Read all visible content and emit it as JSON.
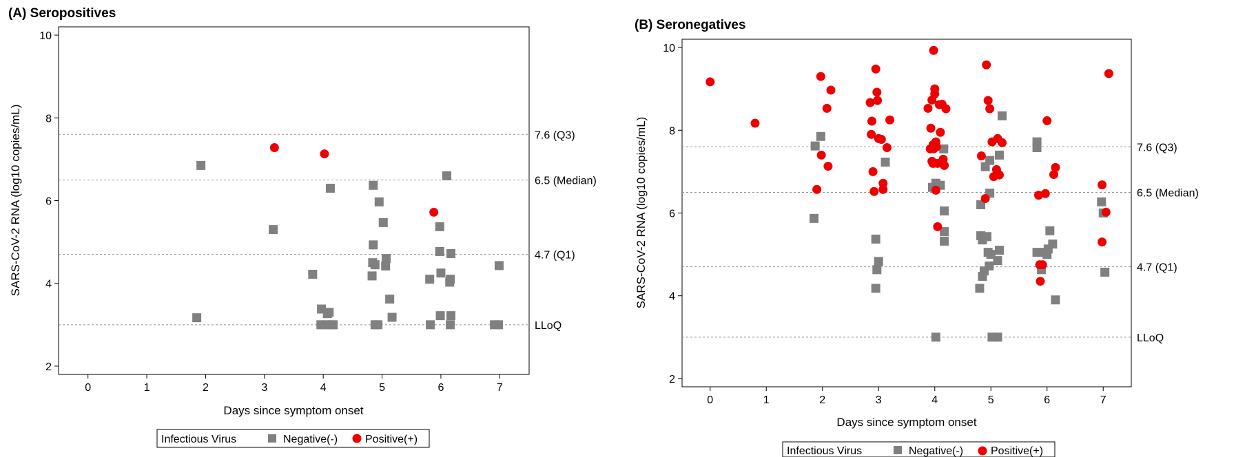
{
  "colors": {
    "negative": "#808080",
    "positive": "#ee0000",
    "axis": "#000000",
    "reference": "#909090"
  },
  "icons": {
    "negative": "square-marker-icon",
    "positive": "circle-marker-icon"
  },
  "legend": {
    "title": "Infectious Virus",
    "negative": "Negative(-)",
    "positive": "Positive(+)",
    "placement": "bottom-center"
  },
  "chart_data": [
    {
      "type": "scatter",
      "title": "(A) Seropositives",
      "xlabel": "Days since symptom onset",
      "ylabel": "SARS-CoV-2 RNA (log10 copies/mL)",
      "xlim": [
        -0.5,
        7.5
      ],
      "ylim": [
        1.8,
        10.2
      ],
      "xticks": [
        0,
        1,
        2,
        3,
        4,
        5,
        6,
        7
      ],
      "yticks": [
        2,
        4,
        6,
        8,
        10
      ],
      "grid": false,
      "reference_lines": [
        {
          "y": 7.6,
          "label": "7.6 (Q3)"
        },
        {
          "y": 6.5,
          "label": "6.5 (Median)"
        },
        {
          "y": 4.7,
          "label": "4.7 (Q1)"
        },
        {
          "y": 3.0,
          "label": "LLoQ"
        }
      ],
      "series": [
        {
          "name": "Negative(-)",
          "marker": "square",
          "points": [
            [
              1.85,
              3.17
            ],
            [
              1.92,
              6.85
            ],
            [
              3.15,
              5.3
            ],
            [
              3.82,
              4.22
            ],
            [
              3.97,
              3.38
            ],
            [
              4.07,
              3.27
            ],
            [
              4.1,
              3.3
            ],
            [
              3.96,
              3.0
            ],
            [
              4.05,
              3.0
            ],
            [
              4.13,
              3.0
            ],
            [
              4.17,
              3.0
            ],
            [
              4.12,
              6.3
            ],
            [
              4.85,
              6.37
            ],
            [
              4.95,
              5.97
            ],
            [
              4.85,
              4.93
            ],
            [
              5.02,
              5.47
            ],
            [
              5.07,
              4.6
            ],
            [
              4.84,
              4.5
            ],
            [
              4.88,
              4.45
            ],
            [
              5.06,
              4.42
            ],
            [
              4.83,
              4.18
            ],
            [
              5.13,
              3.62
            ],
            [
              5.17,
              3.18
            ],
            [
              4.88,
              3.0
            ],
            [
              4.93,
              3.0
            ],
            [
              5.81,
              4.1
            ],
            [
              5.98,
              5.37
            ],
            [
              6.1,
              6.6
            ],
            [
              6.17,
              4.72
            ],
            [
              5.98,
              4.77
            ],
            [
              6.0,
              4.25
            ],
            [
              6.16,
              4.1
            ],
            [
              6.15,
              4.03
            ],
            [
              5.99,
              3.22
            ],
            [
              6.17,
              3.22
            ],
            [
              5.82,
              3.0
            ],
            [
              6.16,
              3.0
            ],
            [
              6.91,
              3.0
            ],
            [
              6.98,
              3.0
            ],
            [
              6.99,
              4.43
            ]
          ]
        },
        {
          "name": "Positive(+)",
          "marker": "circle",
          "points": [
            [
              3.17,
              7.28
            ],
            [
              4.02,
              7.13
            ],
            [
              5.88,
              5.72
            ]
          ]
        }
      ]
    },
    {
      "type": "scatter",
      "title": "(B) Seronegatives",
      "xlabel": "Days since symptom onset",
      "ylabel": "SARS-CoV-2 RNA (log10 copies/mL)",
      "xlim": [
        -0.5,
        7.5
      ],
      "ylim": [
        1.8,
        10.2
      ],
      "xticks": [
        0,
        1,
        2,
        3,
        4,
        5,
        6,
        7
      ],
      "yticks": [
        2,
        4,
        6,
        8,
        10
      ],
      "grid": false,
      "reference_lines": [
        {
          "y": 7.6,
          "label": "7.6 (Q3)"
        },
        {
          "y": 6.5,
          "label": "6.5 (Median)"
        },
        {
          "y": 4.7,
          "label": "4.7 (Q1)"
        },
        {
          "y": 3.0,
          "label": "LLoQ"
        }
      ],
      "series": [
        {
          "name": "Negative(-)",
          "marker": "square",
          "points": [
            [
              1.85,
              5.87
            ],
            [
              1.87,
              7.62
            ],
            [
              1.97,
              7.85
            ],
            [
              2.95,
              5.37
            ],
            [
              2.97,
              4.63
            ],
            [
              3.0,
              4.83
            ],
            [
              2.95,
              4.18
            ],
            [
              3.12,
              7.23
            ],
            [
              3.96,
              6.62
            ],
            [
              4.02,
              6.72
            ],
            [
              4.1,
              6.67
            ],
            [
              4.17,
              6.05
            ],
            [
              4.17,
              5.55
            ],
            [
              4.17,
              5.32
            ],
            [
              4.16,
              7.55
            ],
            [
              4.02,
              3.0
            ],
            [
              4.82,
              6.2
            ],
            [
              4.9,
              7.12
            ],
            [
              4.98,
              7.27
            ],
            [
              5.15,
              7.4
            ],
            [
              5.2,
              8.35
            ],
            [
              4.98,
              6.48
            ],
            [
              4.82,
              5.45
            ],
            [
              4.85,
              5.35
            ],
            [
              4.93,
              5.43
            ],
            [
              4.95,
              5.05
            ],
            [
              5.0,
              5.0
            ],
            [
              5.15,
              5.1
            ],
            [
              5.12,
              4.85
            ],
            [
              4.97,
              4.72
            ],
            [
              4.88,
              4.6
            ],
            [
              4.85,
              4.47
            ],
            [
              4.8,
              4.18
            ],
            [
              5.02,
              3.0
            ],
            [
              5.12,
              3.0
            ],
            [
              5.82,
              7.72
            ],
            [
              5.82,
              7.58
            ],
            [
              5.82,
              5.05
            ],
            [
              5.9,
              5.05
            ],
            [
              6.02,
              5.13
            ],
            [
              6.05,
              5.57
            ],
            [
              6.1,
              5.25
            ],
            [
              6.0,
              5.0
            ],
            [
              5.9,
              4.63
            ],
            [
              6.15,
              3.9
            ],
            [
              6.97,
              6.27
            ],
            [
              7.0,
              6.0
            ],
            [
              7.03,
              4.57
            ]
          ]
        },
        {
          "name": "Positive(+)",
          "marker": "circle",
          "points": [
            [
              0.0,
              9.17
            ],
            [
              0.8,
              8.17
            ],
            [
              1.9,
              6.57
            ],
            [
              1.97,
              9.3
            ],
            [
              1.98,
              7.4
            ],
            [
              2.08,
              8.53
            ],
            [
              2.1,
              7.13
            ],
            [
              2.15,
              8.97
            ],
            [
              2.85,
              8.67
            ],
            [
              2.87,
              7.9
            ],
            [
              2.88,
              8.22
            ],
            [
              2.9,
              7.0
            ],
            [
              2.92,
              6.52
            ],
            [
              2.95,
              9.48
            ],
            [
              2.97,
              8.92
            ],
            [
              2.98,
              8.72
            ],
            [
              3.0,
              7.8
            ],
            [
              3.05,
              7.78
            ],
            [
              3.08,
              6.57
            ],
            [
              3.08,
              6.72
            ],
            [
              3.15,
              7.58
            ],
            [
              3.2,
              8.25
            ],
            [
              3.88,
              8.53
            ],
            [
              3.92,
              7.55
            ],
            [
              3.93,
              8.05
            ],
            [
              3.95,
              8.73
            ],
            [
              3.95,
              7.25
            ],
            [
              3.97,
              7.65
            ],
            [
              3.97,
              7.2
            ],
            [
              3.98,
              9.93
            ],
            [
              3.98,
              7.55
            ],
            [
              4.0,
              9.0
            ],
            [
              4.0,
              8.88
            ],
            [
              4.02,
              7.72
            ],
            [
              4.03,
              7.6
            ],
            [
              4.02,
              6.55
            ],
            [
              4.05,
              7.2
            ],
            [
              4.05,
              5.67
            ],
            [
              4.08,
              8.62
            ],
            [
              4.1,
              7.95
            ],
            [
              4.13,
              8.63
            ],
            [
              4.15,
              7.3
            ],
            [
              4.17,
              7.15
            ],
            [
              4.2,
              8.52
            ],
            [
              4.83,
              7.38
            ],
            [
              4.9,
              6.35
            ],
            [
              4.92,
              9.58
            ],
            [
              4.95,
              8.72
            ],
            [
              4.98,
              8.52
            ],
            [
              5.02,
              7.72
            ],
            [
              5.05,
              6.88
            ],
            [
              5.1,
              7.05
            ],
            [
              5.12,
              7.8
            ],
            [
              5.15,
              6.92
            ],
            [
              5.2,
              7.7
            ],
            [
              5.85,
              6.43
            ],
            [
              5.87,
              4.75
            ],
            [
              5.88,
              4.35
            ],
            [
              5.92,
              4.75
            ],
            [
              5.97,
              6.47
            ],
            [
              6.0,
              8.23
            ],
            [
              6.12,
              6.93
            ],
            [
              6.15,
              7.1
            ],
            [
              6.98,
              6.68
            ],
            [
              6.98,
              5.3
            ],
            [
              7.05,
              6.02
            ],
            [
              7.1,
              9.37
            ]
          ]
        }
      ]
    }
  ]
}
